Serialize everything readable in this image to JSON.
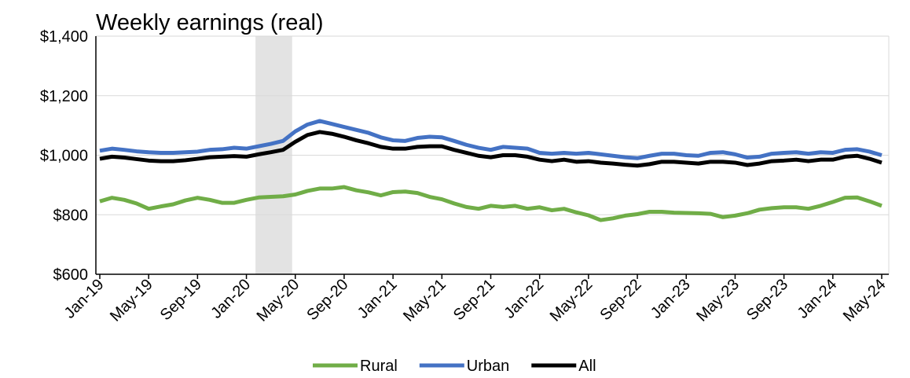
{
  "chart_data": {
    "type": "line",
    "title": "Weekly earnings (real)",
    "categories": [
      "Jan-19",
      null,
      null,
      null,
      "May-19",
      null,
      null,
      null,
      "Sep-19",
      null,
      null,
      null,
      "Jan-20",
      null,
      null,
      null,
      "May-20",
      null,
      null,
      null,
      "Sep-20",
      null,
      null,
      null,
      "Jan-21",
      null,
      null,
      null,
      "May-21",
      null,
      null,
      null,
      "Sep-21",
      null,
      null,
      null,
      "Jan-22",
      null,
      null,
      null,
      "May-22",
      null,
      null,
      null,
      "Sep-22",
      null,
      null,
      null,
      "Jan-23",
      null,
      null,
      null,
      "May-23",
      null,
      null,
      null,
      "Sep-23",
      null,
      null,
      null,
      "Jan-24",
      null,
      null,
      null,
      "May-24"
    ],
    "series": [
      {
        "name": "Rural",
        "color": "#70ad47",
        "values": [
          845,
          857,
          850,
          838,
          820,
          828,
          835,
          848,
          857,
          850,
          840,
          840,
          850,
          858,
          860,
          862,
          868,
          880,
          888,
          888,
          893,
          882,
          875,
          865,
          876,
          878,
          873,
          860,
          852,
          838,
          826,
          820,
          830,
          826,
          830,
          820,
          825,
          815,
          820,
          808,
          798,
          782,
          788,
          797,
          802,
          810,
          810,
          807,
          806,
          805,
          803,
          792,
          797,
          805,
          817,
          822,
          825,
          825,
          820,
          830,
          843,
          857,
          858,
          845,
          830
        ]
      },
      {
        "name": "Urban",
        "color": "#4472c4",
        "values": [
          1015,
          1022,
          1018,
          1013,
          1010,
          1008,
          1008,
          1010,
          1012,
          1018,
          1020,
          1025,
          1022,
          1030,
          1038,
          1048,
          1080,
          1103,
          1115,
          1105,
          1095,
          1085,
          1075,
          1060,
          1050,
          1048,
          1058,
          1062,
          1060,
          1048,
          1035,
          1025,
          1018,
          1028,
          1025,
          1022,
          1008,
          1005,
          1008,
          1005,
          1008,
          1003,
          998,
          993,
          990,
          998,
          1005,
          1005,
          1000,
          998,
          1008,
          1010,
          1003,
          992,
          995,
          1005,
          1008,
          1010,
          1005,
          1010,
          1008,
          1018,
          1020,
          1012,
          1000
        ]
      },
      {
        "name": "All",
        "color": "#000000",
        "values": [
          988,
          995,
          992,
          987,
          982,
          980,
          980,
          983,
          988,
          993,
          995,
          997,
          995,
          1003,
          1010,
          1018,
          1045,
          1068,
          1078,
          1072,
          1062,
          1050,
          1040,
          1028,
          1022,
          1022,
          1028,
          1030,
          1030,
          1018,
          1008,
          998,
          993,
          1000,
          1000,
          995,
          985,
          980,
          985,
          978,
          980,
          975,
          972,
          968,
          965,
          970,
          978,
          978,
          975,
          972,
          978,
          978,
          975,
          967,
          972,
          980,
          982,
          985,
          980,
          985,
          985,
          995,
          998,
          988,
          975
        ]
      }
    ],
    "ylim": [
      600,
      1400
    ],
    "yticks": [
      {
        "value": 600,
        "label": "$600"
      },
      {
        "value": 800,
        "label": "$800"
      },
      {
        "value": 1000,
        "label": "$1,000"
      },
      {
        "value": 1200,
        "label": "$1,200"
      },
      {
        "value": 1400,
        "label": "$1,400"
      }
    ],
    "grid": true,
    "legend": "bottom",
    "shaded_region": {
      "start": 13,
      "end": 16,
      "color": "#e3e3e3"
    }
  }
}
